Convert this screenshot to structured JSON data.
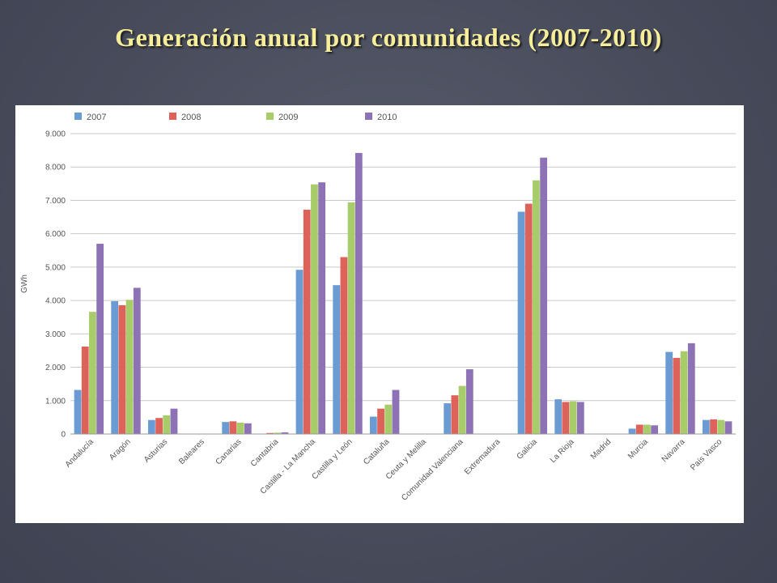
{
  "slide": {
    "title": "Generación anual por comunidades (2007-2010)"
  },
  "chart_data": {
    "type": "bar",
    "title": "",
    "xlabel": "",
    "ylabel": "GWh",
    "ylim": [
      0,
      9000
    ],
    "yticks": [
      "0",
      "1.000",
      "2.000",
      "3.000",
      "4.000",
      "5.000",
      "6.000",
      "7.000",
      "8.000",
      "9.000"
    ],
    "grid": true,
    "legend_position": "top-left",
    "categories": [
      "Andalucía",
      "Aragón",
      "Asturias",
      "Baleares",
      "Canarias",
      "Cantabria",
      "Castilla - La Mancha",
      "Castilla y León",
      "Cataluña",
      "Ceuta y Melilla",
      "Comunidad Valenciana",
      "Extremadura",
      "Galicia",
      "La Rioja",
      "Madrid",
      "Murcia",
      "Navarra",
      "País Vasco"
    ],
    "series": [
      {
        "name": "2007",
        "color": "#6a9bd3",
        "values": [
          1320,
          3980,
          420,
          0,
          360,
          0,
          4920,
          4460,
          520,
          0,
          920,
          0,
          6660,
          1040,
          0,
          160,
          2460,
          420
        ]
      },
      {
        "name": "2008",
        "color": "#dc625a",
        "values": [
          2620,
          3860,
          480,
          0,
          380,
          30,
          6720,
          5300,
          760,
          0,
          1160,
          0,
          6900,
          960,
          0,
          280,
          2280,
          440
        ]
      },
      {
        "name": "2009",
        "color": "#a8cc6a",
        "values": [
          3660,
          4020,
          560,
          0,
          340,
          40,
          7480,
          6940,
          880,
          0,
          1440,
          0,
          7600,
          980,
          0,
          280,
          2480,
          420
        ]
      },
      {
        "name": "2010",
        "color": "#8d73b5",
        "values": [
          5700,
          4380,
          760,
          0,
          320,
          50,
          7540,
          8420,
          1320,
          0,
          1940,
          0,
          8280,
          960,
          0,
          260,
          2720,
          380
        ]
      }
    ]
  }
}
